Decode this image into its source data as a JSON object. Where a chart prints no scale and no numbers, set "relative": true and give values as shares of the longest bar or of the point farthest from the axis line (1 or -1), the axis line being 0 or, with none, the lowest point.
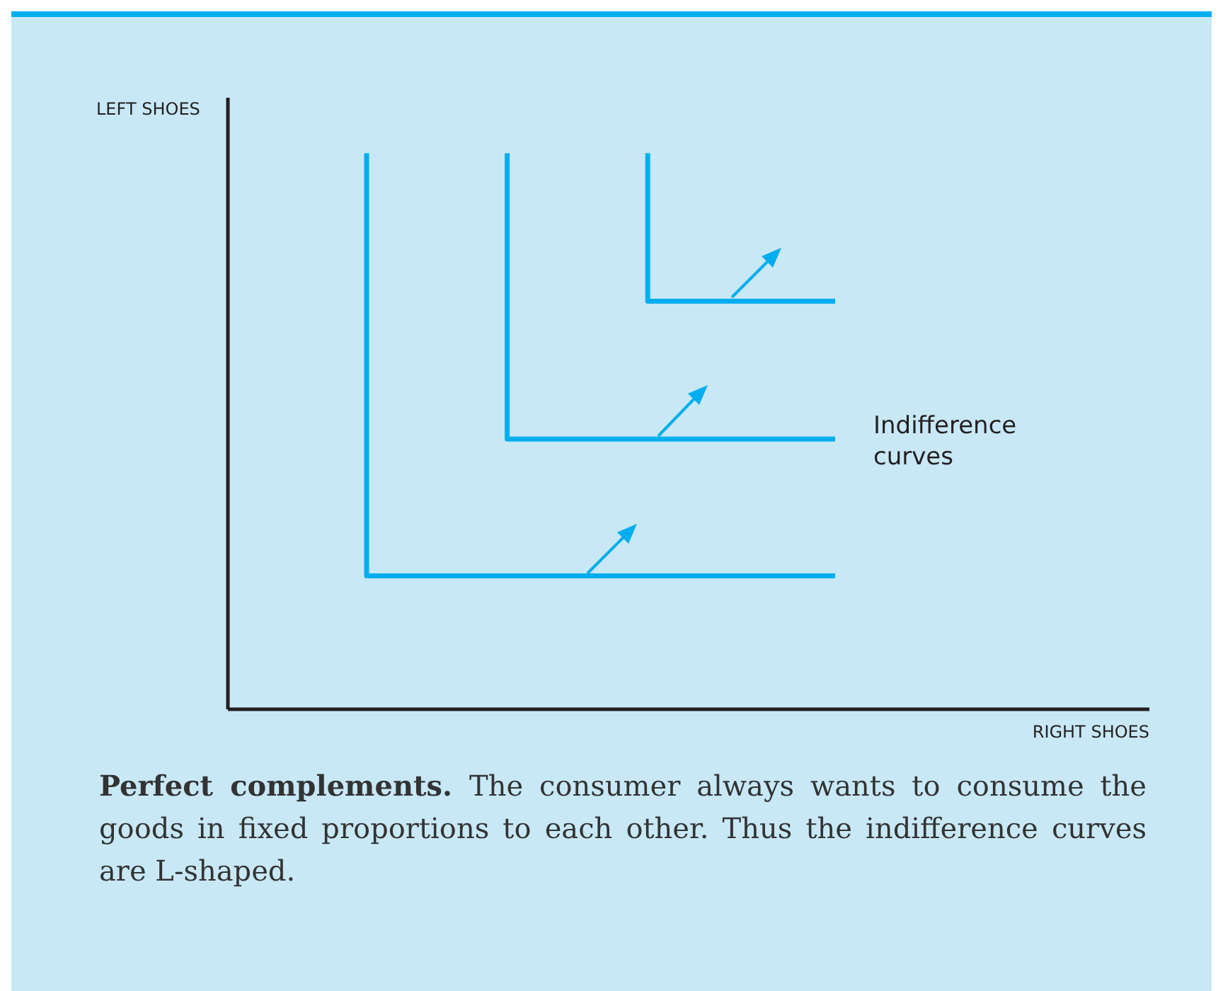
{
  "chart_data": {
    "type": "step",
    "relative": true,
    "categories": [
      null,
      null,
      null,
      null,
      null,
      null,
      null,
      null,
      null,
      null,
      null
    ],
    "grid": false,
    "legend": false,
    "marker": "none",
    "line_style": "solid",
    "series": [
      {
        "color": "#00aeef",
        "values": [
          1,
          0.24,
          0.24,
          0.24,
          0.24,
          0.24,
          0.24,
          0.24,
          0.24,
          0.24,
          0.24
        ]
      },
      {
        "color": "#00aeef",
        "values": [
          null,
          null,
          null,
          1,
          0.486,
          0.486,
          0.486,
          0.486,
          0.486,
          0.486,
          0.486
        ]
      },
      {
        "color": "#00aeef",
        "values": [
          null,
          null,
          null,
          null,
          null,
          null,
          1,
          0.734,
          0.734,
          0.734,
          0.734
        ]
      }
    ],
    "annotations": [
      "Indifference curves",
      "LEFT SHOES",
      "RIGHT SHOES",
      "Perfect complements.",
      "The consumer always wants to consume the goods in fixed proportions to each other. Thus the indifference curves are L-shaped."
    ]
  }
}
